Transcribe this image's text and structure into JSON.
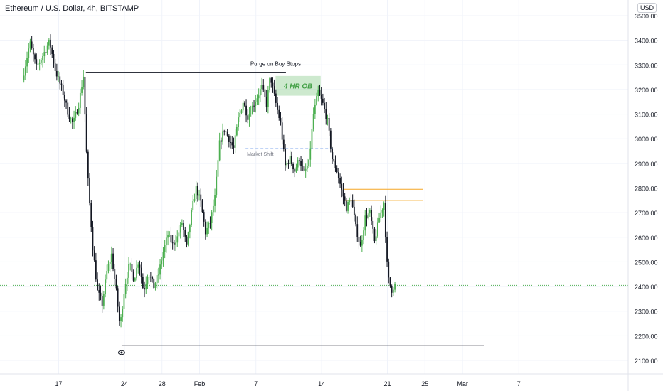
{
  "chart_data": {
    "type": "candlestick",
    "title": "Ethereum / U.S. Dollar, 4h, BITSTAMP",
    "currency": "USD",
    "ylim": [
      2050,
      3550
    ],
    "y_ticks": [
      2100,
      2200,
      2300,
      2400,
      2500,
      2600,
      2700,
      2800,
      2900,
      3000,
      3100,
      3200,
      3300,
      3400,
      3500
    ],
    "y_tick_labels": [
      "2100.00",
      "2200.00",
      "2300.00",
      "2400.00",
      "2500.00",
      "2600.00",
      "2700.00",
      "2800.00",
      "2900.00",
      "3000.00",
      "3100.00",
      "3200.00",
      "3300.00",
      "3400.00",
      "3500.00"
    ],
    "x_range_days": [
      13.3,
      39.8
    ],
    "x_ticks": [
      {
        "day": 17,
        "label": "17"
      },
      {
        "day": 24,
        "label": "24"
      },
      {
        "day": 28,
        "label": "28"
      },
      {
        "day": 32,
        "label": "Feb"
      },
      {
        "day": 38,
        "label": "7"
      },
      {
        "day": 45,
        "label": "14"
      },
      {
        "day": 52,
        "label": "21"
      },
      {
        "day": 56,
        "label": "25"
      },
      {
        "day": 60,
        "label": "Mar"
      },
      {
        "day": 66,
        "label": "7"
      }
    ],
    "current_price": 2405,
    "price_path": [
      [
        13.3,
        3240
      ],
      [
        14.1,
        3390
      ],
      [
        14.8,
        3290
      ],
      [
        15.5,
        3340
      ],
      [
        16.2,
        3395
      ],
      [
        16.8,
        3280
      ],
      [
        17.6,
        3190
      ],
      [
        18.2,
        3100
      ],
      [
        18.7,
        3060
      ],
      [
        19.3,
        3140
      ],
      [
        19.8,
        3255
      ],
      [
        20.2,
        2880
      ],
      [
        20.8,
        2560
      ],
      [
        21.3,
        2380
      ],
      [
        21.8,
        2330
      ],
      [
        22.3,
        2460
      ],
      [
        22.8,
        2530
      ],
      [
        23.3,
        2380
      ],
      [
        23.7,
        2235
      ],
      [
        24.2,
        2400
      ],
      [
        24.7,
        2490
      ],
      [
        25.2,
        2430
      ],
      [
        25.7,
        2510
      ],
      [
        26.2,
        2380
      ],
      [
        26.7,
        2460
      ],
      [
        27.3,
        2400
      ],
      [
        27.8,
        2450
      ],
      [
        28.3,
        2540
      ],
      [
        28.8,
        2610
      ],
      [
        29.3,
        2570
      ],
      [
        29.8,
        2600
      ],
      [
        30.3,
        2660
      ],
      [
        30.8,
        2560
      ],
      [
        31.3,
        2700
      ],
      [
        31.8,
        2800
      ],
      [
        32.3,
        2740
      ],
      [
        32.8,
        2620
      ],
      [
        33.3,
        2660
      ],
      [
        33.8,
        2760
      ],
      [
        34.3,
        2980
      ],
      [
        34.8,
        3040
      ],
      [
        35.3,
        3000
      ],
      [
        35.8,
        2960
      ],
      [
        36.3,
        3080
      ],
      [
        36.8,
        3150
      ],
      [
        37.3,
        3090
      ],
      [
        37.8,
        3130
      ],
      [
        38.3,
        3170
      ],
      [
        38.8,
        3210
      ],
      [
        39.3,
        3140
      ],
      [
        39.7,
        3255
      ],
      [
        40.2,
        3160
      ],
      [
        40.8,
        3060
      ],
      [
        41.3,
        2890
      ],
      [
        41.8,
        2920
      ],
      [
        42.3,
        2870
      ],
      [
        42.8,
        2920
      ],
      [
        43.3,
        2860
      ],
      [
        43.8,
        2900
      ],
      [
        44.3,
        3100
      ],
      [
        44.8,
        3190
      ],
      [
        45.3,
        3140
      ],
      [
        45.8,
        3070
      ],
      [
        46.3,
        2920
      ],
      [
        46.8,
        2870
      ],
      [
        47.3,
        2790
      ],
      [
        47.8,
        2720
      ],
      [
        48.3,
        2760
      ],
      [
        48.8,
        2640
      ],
      [
        49.3,
        2560
      ],
      [
        49.8,
        2680
      ],
      [
        50.3,
        2700
      ],
      [
        50.8,
        2580
      ],
      [
        51.3,
        2680
      ],
      [
        51.8,
        2740
      ],
      [
        52.2,
        2440
      ],
      [
        52.6,
        2385
      ],
      [
        52.9,
        2405
      ]
    ],
    "annotations": [
      {
        "type": "hline",
        "label": "Purge on Buy Stops",
        "price": 3270,
        "from_day": 19.9,
        "to_day": 41.2,
        "color": "#131722"
      },
      {
        "type": "zone",
        "label": "4 HR OB",
        "price_low": 3175,
        "price_high": 3255,
        "from_day": 40.1,
        "to_day": 44.9,
        "color": "#4caf50"
      },
      {
        "type": "dashed-hline",
        "label": "Market Shift",
        "price": 2960,
        "from_day": 36.9,
        "to_day": 46.2,
        "color": "#5b8ee6"
      },
      {
        "type": "hline",
        "label": "",
        "price": 2795,
        "from_day": 47.4,
        "to_day": 55.8,
        "color": "#f5a623"
      },
      {
        "type": "hline",
        "label": "",
        "price": 2750,
        "from_day": 47.4,
        "to_day": 55.8,
        "color": "#f5a623"
      },
      {
        "type": "hline",
        "label": "",
        "price": 2160,
        "from_day": 23.7,
        "to_day": 62.3,
        "color": "#131722"
      }
    ],
    "colors": {
      "up": "#4caf50",
      "down": "#131722",
      "grid": "#f0f3fa",
      "axis_text": "#131722",
      "current_price_line": "#4caf50"
    },
    "marker": {
      "type": "eye-icon",
      "day": 23.7
    }
  }
}
